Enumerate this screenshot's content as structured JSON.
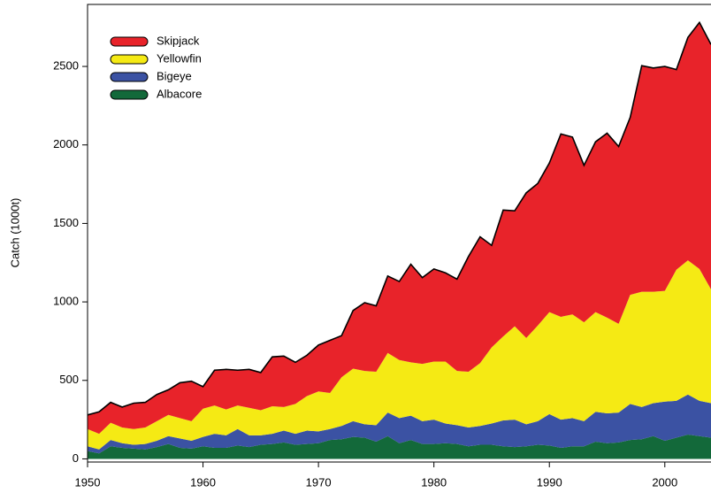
{
  "chart_data": {
    "type": "stacked-area",
    "ylabel": "Catch (1000t)",
    "x": [
      1950,
      1951,
      1952,
      1953,
      1954,
      1955,
      1956,
      1957,
      1958,
      1959,
      1960,
      1961,
      1962,
      1963,
      1964,
      1965,
      1966,
      1967,
      1968,
      1969,
      1970,
      1971,
      1972,
      1973,
      1974,
      1975,
      1976,
      1977,
      1978,
      1979,
      1980,
      1981,
      1982,
      1983,
      1984,
      1985,
      1986,
      1987,
      1988,
      1989,
      1990,
      1991,
      1992,
      1993,
      1994,
      1995,
      1996,
      1997,
      1998,
      1999,
      2000,
      2001,
      2002,
      2003,
      2004
    ],
    "xlim": [
      1950,
      2004
    ],
    "xticks": [
      1950,
      1960,
      1970,
      1980,
      1990,
      2000
    ],
    "ylim": [
      -20,
      2895
    ],
    "yticks": [
      0,
      500,
      1000,
      1500,
      2000,
      2500
    ],
    "series": [
      {
        "name": "Albacore",
        "color": "#13693a",
        "values": [
          50,
          35,
          80,
          70,
          65,
          60,
          75,
          95,
          70,
          65,
          80,
          70,
          70,
          85,
          75,
          90,
          95,
          105,
          90,
          95,
          100,
          120,
          125,
          140,
          135,
          110,
          145,
          100,
          120,
          95,
          95,
          100,
          95,
          80,
          90,
          90,
          80,
          75,
          80,
          90,
          85,
          70,
          80,
          80,
          110,
          100,
          105,
          120,
          125,
          145,
          115,
          135,
          155,
          145,
          135
        ]
      },
      {
        "name": "Bigeye",
        "color": "#3b52a3",
        "values": [
          30,
          25,
          40,
          30,
          25,
          35,
          40,
          50,
          60,
          50,
          60,
          90,
          80,
          105,
          75,
          60,
          65,
          75,
          70,
          85,
          75,
          70,
          85,
          100,
          85,
          105,
          150,
          160,
          155,
          145,
          155,
          125,
          120,
          120,
          120,
          135,
          165,
          175,
          140,
          150,
          200,
          180,
          180,
          160,
          190,
          190,
          190,
          230,
          205,
          210,
          250,
          235,
          255,
          225,
          220
        ]
      },
      {
        "name": "Yellowfin",
        "color": "#f5ea14",
        "values": [
          110,
          100,
          110,
          100,
          100,
          105,
          125,
          135,
          130,
          125,
          180,
          180,
          165,
          150,
          175,
          160,
          175,
          150,
          190,
          220,
          255,
          230,
          310,
          335,
          340,
          340,
          380,
          370,
          340,
          365,
          370,
          395,
          345,
          355,
          400,
          485,
          535,
          595,
          550,
          610,
          650,
          655,
          660,
          630,
          635,
          610,
          565,
          695,
          735,
          710,
          705,
          835,
          855,
          840,
          725
        ]
      },
      {
        "name": "Skipjack",
        "color": "#e8232a",
        "values": [
          90,
          140,
          130,
          130,
          165,
          160,
          170,
          160,
          225,
          255,
          140,
          225,
          255,
          225,
          245,
          240,
          315,
          325,
          265,
          260,
          295,
          335,
          265,
          370,
          435,
          420,
          490,
          500,
          625,
          550,
          590,
          565,
          585,
          735,
          805,
          650,
          805,
          735,
          925,
          905,
          950,
          1165,
          1130,
          1000,
          1085,
          1175,
          1130,
          1130,
          1440,
          1425,
          1430,
          1275,
          1420,
          1570,
          1560
        ]
      }
    ],
    "legend": "upper left"
  }
}
